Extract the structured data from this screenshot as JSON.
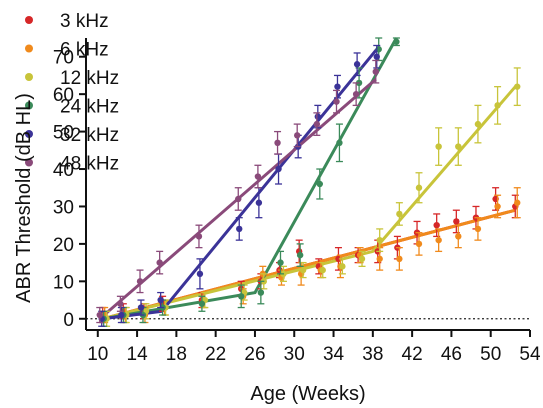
{
  "chart_data": {
    "type": "scatter",
    "xlabel": "Age (Weeks)",
    "ylabel": "ABR Threshold (dB HL)",
    "xlim": [
      8.8,
      54
    ],
    "ylim": [
      -3,
      75
    ],
    "xticks": [
      10,
      14,
      18,
      22,
      26,
      30,
      34,
      38,
      42,
      46,
      50,
      54
    ],
    "yticks": [
      0,
      10,
      20,
      30,
      40,
      50,
      60,
      70
    ],
    "reference_line": {
      "y": 0,
      "style": "dotted"
    },
    "legend_position": "top-left",
    "series": [
      {
        "name": "3 kHz",
        "color": "#d62728",
        "points": [
          {
            "x": 10.5,
            "y": 1,
            "err": 2
          },
          {
            "x": 12.6,
            "y": 2,
            "err": 2
          },
          {
            "x": 14.7,
            "y": 2,
            "err": 2
          },
          {
            "x": 16.6,
            "y": 4,
            "err": 2
          },
          {
            "x": 20.6,
            "y": 5,
            "err": 2
          },
          {
            "x": 24.6,
            "y": 8,
            "err": 2
          },
          {
            "x": 26.6,
            "y": 10,
            "err": 2
          },
          {
            "x": 28.5,
            "y": 13,
            "err": 2
          },
          {
            "x": 30.5,
            "y": 18,
            "err": 3
          },
          {
            "x": 32.5,
            "y": 14,
            "err": 2
          },
          {
            "x": 34.5,
            "y": 16,
            "err": 3
          },
          {
            "x": 36.5,
            "y": 17,
            "err": 2
          },
          {
            "x": 38.5,
            "y": 18,
            "err": 3
          },
          {
            "x": 40.5,
            "y": 19,
            "err": 3
          },
          {
            "x": 42.5,
            "y": 23,
            "err": 3
          },
          {
            "x": 44.5,
            "y": 25,
            "err": 3
          },
          {
            "x": 46.5,
            "y": 26,
            "err": 3
          },
          {
            "x": 48.5,
            "y": 27,
            "err": 3
          },
          {
            "x": 50.5,
            "y": 32,
            "err": 3
          },
          {
            "x": 52.5,
            "y": 30,
            "err": 3
          }
        ],
        "fit": [
          [
            10.5,
            0
          ],
          [
            52.5,
            29
          ]
        ]
      },
      {
        "name": "6 kHz",
        "color": "#f08a1c",
        "points": [
          {
            "x": 10.7,
            "y": 1,
            "err": 2
          },
          {
            "x": 12.8,
            "y": 1,
            "err": 2
          },
          {
            "x": 14.8,
            "y": 1,
            "err": 2
          },
          {
            "x": 16.8,
            "y": 3,
            "err": 2
          },
          {
            "x": 20.8,
            "y": 5,
            "err": 2
          },
          {
            "x": 24.8,
            "y": 6,
            "err": 2
          },
          {
            "x": 26.8,
            "y": 12,
            "err": 2
          },
          {
            "x": 28.7,
            "y": 11,
            "err": 2
          },
          {
            "x": 30.7,
            "y": 12,
            "err": 3
          },
          {
            "x": 32.7,
            "y": 13,
            "err": 2
          },
          {
            "x": 34.7,
            "y": 14,
            "err": 3
          },
          {
            "x": 36.7,
            "y": 17,
            "err": 2
          },
          {
            "x": 38.7,
            "y": 16,
            "err": 3
          },
          {
            "x": 40.7,
            "y": 16,
            "err": 3
          },
          {
            "x": 42.7,
            "y": 20,
            "err": 3
          },
          {
            "x": 44.7,
            "y": 21,
            "err": 3
          },
          {
            "x": 46.7,
            "y": 22,
            "err": 3
          },
          {
            "x": 48.7,
            "y": 24,
            "err": 3
          },
          {
            "x": 50.7,
            "y": 30,
            "err": 3
          },
          {
            "x": 52.7,
            "y": 31,
            "err": 4
          }
        ],
        "fit": [
          [
            10.5,
            0
          ],
          [
            52.5,
            29
          ]
        ]
      },
      {
        "name": "12 kHz",
        "color": "#c8c43a",
        "points": [
          {
            "x": 10.9,
            "y": 0,
            "err": 2
          },
          {
            "x": 12.9,
            "y": 1,
            "err": 2
          },
          {
            "x": 14.9,
            "y": 2,
            "err": 2
          },
          {
            "x": 16.9,
            "y": 3,
            "err": 2
          },
          {
            "x": 20.9,
            "y": 5,
            "err": 2
          },
          {
            "x": 24.9,
            "y": 7,
            "err": 2
          },
          {
            "x": 26.9,
            "y": 10,
            "err": 2
          },
          {
            "x": 28.9,
            "y": 12,
            "err": 2
          },
          {
            "x": 30.9,
            "y": 13,
            "err": 2
          },
          {
            "x": 32.9,
            "y": 13,
            "err": 2
          },
          {
            "x": 34.9,
            "y": 14,
            "err": 2
          },
          {
            "x": 36.9,
            "y": 16,
            "err": 2
          },
          {
            "x": 38.7,
            "y": 21,
            "err": 3
          },
          {
            "x": 40.7,
            "y": 28,
            "err": 3
          },
          {
            "x": 42.7,
            "y": 35,
            "err": 4
          },
          {
            "x": 44.7,
            "y": 46,
            "err": 5
          },
          {
            "x": 46.7,
            "y": 46,
            "err": 5
          },
          {
            "x": 48.7,
            "y": 52,
            "err": 5
          },
          {
            "x": 50.7,
            "y": 57,
            "err": 5
          },
          {
            "x": 52.7,
            "y": 62,
            "err": 5
          }
        ],
        "fit": [
          [
            10.5,
            0
          ],
          [
            38,
            18
          ],
          [
            52.5,
            62
          ]
        ]
      },
      {
        "name": "24 kHz",
        "color": "#3b8a5a",
        "points": [
          {
            "x": 10.6,
            "y": 0,
            "err": 2
          },
          {
            "x": 12.6,
            "y": 1,
            "err": 2
          },
          {
            "x": 14.6,
            "y": 1,
            "err": 2
          },
          {
            "x": 16.6,
            "y": 3,
            "err": 2
          },
          {
            "x": 20.6,
            "y": 4,
            "err": 2
          },
          {
            "x": 24.6,
            "y": 6,
            "err": 3
          },
          {
            "x": 26.6,
            "y": 7,
            "err": 3
          },
          {
            "x": 28.6,
            "y": 15,
            "err": 3
          },
          {
            "x": 30.6,
            "y": 17,
            "err": 3
          },
          {
            "x": 32.6,
            "y": 36,
            "err": 4
          },
          {
            "x": 34.6,
            "y": 47,
            "err": 5
          },
          {
            "x": 36.6,
            "y": 63,
            "err": 4
          },
          {
            "x": 38.6,
            "y": 72,
            "err": 3
          },
          {
            "x": 40.4,
            "y": 74,
            "err": 1
          }
        ],
        "fit": [
          [
            10.5,
            0
          ],
          [
            26,
            7
          ],
          [
            40.4,
            75
          ]
        ]
      },
      {
        "name": "32 kHz",
        "color": "#3b3398",
        "points": [
          {
            "x": 10.4,
            "y": 0,
            "err": 2
          },
          {
            "x": 12.4,
            "y": 1,
            "err": 2
          },
          {
            "x": 14.4,
            "y": 3,
            "err": 2
          },
          {
            "x": 16.4,
            "y": 5,
            "err": 2
          },
          {
            "x": 20.4,
            "y": 12,
            "err": 4
          },
          {
            "x": 24.4,
            "y": 24,
            "err": 3
          },
          {
            "x": 26.4,
            "y": 31,
            "err": 4
          },
          {
            "x": 28.4,
            "y": 40,
            "err": 4
          },
          {
            "x": 30.4,
            "y": 46,
            "err": 3
          },
          {
            "x": 32.4,
            "y": 54,
            "err": 3
          },
          {
            "x": 34.4,
            "y": 62,
            "err": 3
          },
          {
            "x": 36.4,
            "y": 68,
            "err": 3
          },
          {
            "x": 38.4,
            "y": 70,
            "err": 3
          }
        ],
        "fit": [
          [
            10.5,
            0
          ],
          [
            16.5,
            2
          ],
          [
            38.4,
            72
          ]
        ]
      },
      {
        "name": "48 kHz",
        "color": "#8a4a7a",
        "points": [
          {
            "x": 10.2,
            "y": 1,
            "err": 2
          },
          {
            "x": 12.3,
            "y": 4,
            "err": 2
          },
          {
            "x": 14.3,
            "y": 10,
            "err": 3
          },
          {
            "x": 16.3,
            "y": 15,
            "err": 3
          },
          {
            "x": 20.3,
            "y": 22,
            "err": 3
          },
          {
            "x": 24.3,
            "y": 32,
            "err": 3
          },
          {
            "x": 26.3,
            "y": 38,
            "err": 3
          },
          {
            "x": 28.3,
            "y": 47,
            "err": 3
          },
          {
            "x": 30.3,
            "y": 49,
            "err": 3
          },
          {
            "x": 32.3,
            "y": 52,
            "err": 3
          },
          {
            "x": 34.3,
            "y": 58,
            "err": 3
          },
          {
            "x": 36.3,
            "y": 60,
            "err": 3
          },
          {
            "x": 38.3,
            "y": 66,
            "err": 3
          }
        ],
        "fit": [
          [
            10.2,
            0
          ],
          [
            38.3,
            64
          ]
        ]
      }
    ]
  }
}
